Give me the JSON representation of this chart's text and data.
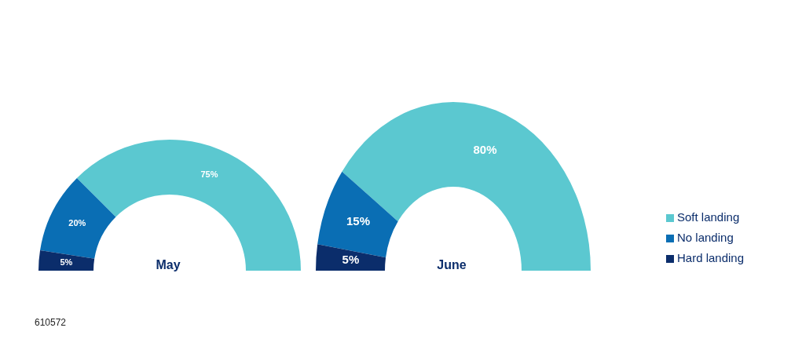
{
  "chart_data": [
    {
      "type": "donut",
      "title": "May",
      "categories": [
        null,
        null,
        null
      ],
      "values": [
        75,
        20,
        5
      ],
      "value_labels": [
        "75%",
        "20%",
        "5%"
      ],
      "colors": [
        "#5bc8d0",
        "#0a6eb4",
        "#0b2d6b"
      ],
      "legend": false,
      "annotations": [
        "610572"
      ]
    },
    {
      "type": "donut",
      "title": "June",
      "categories": [
        "Soft landing",
        "No landing",
        "Hard landing"
      ],
      "values": [
        80,
        15,
        5
      ],
      "value_labels": [
        "80%",
        "15%",
        "5%"
      ],
      "colors": [
        "#5bc8d0",
        "#0a6eb4",
        "#0b2d6b"
      ],
      "legend": "right"
    }
  ]
}
